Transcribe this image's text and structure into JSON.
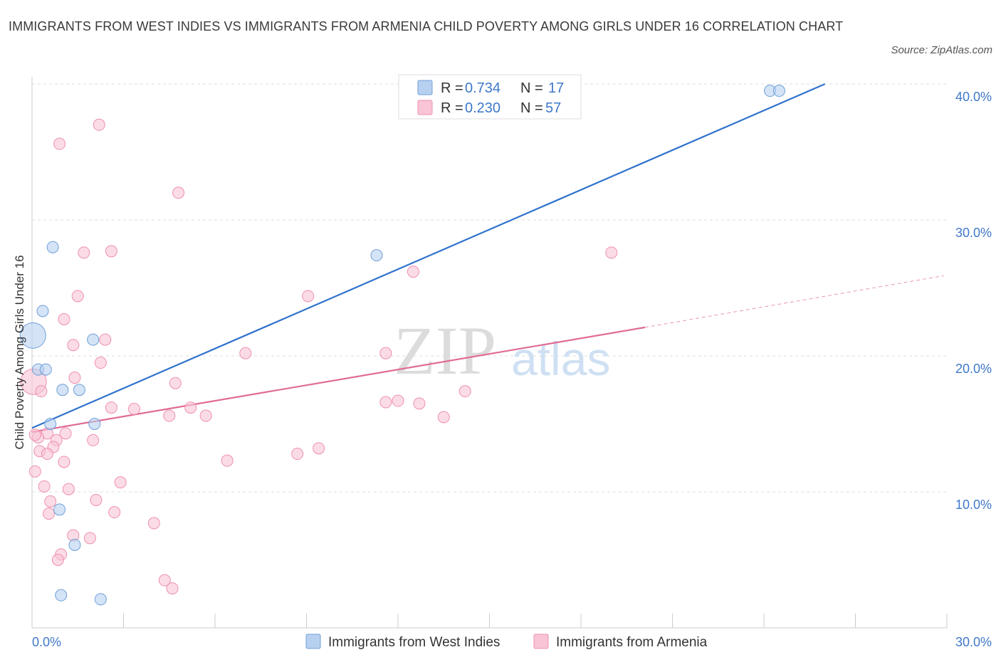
{
  "title": "IMMIGRANTS FROM WEST INDIES VS IMMIGRANTS FROM ARMENIA CHILD POVERTY AMONG GIRLS UNDER 16 CORRELATION CHART",
  "source": "Source: ZipAtlas.com",
  "watermark": {
    "zip": "ZIP",
    "atlas": "atlas"
  },
  "colors": {
    "blue_fill": "#b8d0f0",
    "blue_stroke": "#6f9fd8",
    "blue_line": "#2f72cc",
    "pink_fill": "#f8c4d6",
    "pink_stroke": "#ee8fb0",
    "pink_line": "#e06b95",
    "grid": "#dddddd",
    "axis_text": "#3f78c8"
  },
  "legend": {
    "r_label": "R =",
    "n_label": "N =",
    "series": [
      {
        "r": "0.734",
        "n": "17"
      },
      {
        "r": "0.230",
        "n": "57"
      }
    ]
  },
  "bottom_legend": [
    "Immigrants from West Indies",
    "Immigrants from Armenia"
  ],
  "chart_data": {
    "type": "scatter",
    "title": "IMMIGRANTS FROM WEST INDIES VS IMMIGRANTS FROM ARMENIA CHILD POVERTY AMONG GIRLS UNDER 16 CORRELATION CHART",
    "xlabel": "",
    "ylabel": "Child Poverty Among Girls Under 16",
    "xlim": [
      0,
      30
    ],
    "ylim": [
      0,
      40
    ],
    "x_tick_labels": [
      "0.0%",
      "30.0%"
    ],
    "y_ticks": [
      10,
      20,
      30,
      40
    ],
    "y_tick_labels": [
      "10.0%",
      "20.0%",
      "30.0%",
      "40.0%"
    ],
    "grid": true,
    "series": [
      {
        "name": "Immigrants from West Indies",
        "color": "blue",
        "r": 0.734,
        "n": 17,
        "points": [
          {
            "x": 0.03,
            "y": 21.5,
            "big": true
          },
          {
            "x": 0.2,
            "y": 19.0
          },
          {
            "x": 0.45,
            "y": 19.0
          },
          {
            "x": 0.35,
            "y": 23.3
          },
          {
            "x": 0.68,
            "y": 28.0
          },
          {
            "x": 1.0,
            "y": 17.5
          },
          {
            "x": 1.55,
            "y": 17.5
          },
          {
            "x": 0.6,
            "y": 15.0
          },
          {
            "x": 2.0,
            "y": 21.2
          },
          {
            "x": 2.05,
            "y": 15.0
          },
          {
            "x": 0.9,
            "y": 8.7
          },
          {
            "x": 1.4,
            "y": 6.1
          },
          {
            "x": 0.95,
            "y": 2.4
          },
          {
            "x": 2.25,
            "y": 2.1
          },
          {
            "x": 11.3,
            "y": 27.4
          },
          {
            "x": 24.2,
            "y": 39.5
          },
          {
            "x": 24.5,
            "y": 39.5
          }
        ],
        "trend": {
          "x0": 0,
          "y0": 14.7,
          "x1": 26.0,
          "y1": 40.0
        }
      },
      {
        "name": "Immigrants from Armenia",
        "color": "pink",
        "r": 0.23,
        "n": 57,
        "points": [
          {
            "x": 2.2,
            "y": 37.0
          },
          {
            "x": 0.9,
            "y": 35.6
          },
          {
            "x": 4.8,
            "y": 32.0
          },
          {
            "x": 1.7,
            "y": 27.6
          },
          {
            "x": 2.6,
            "y": 27.7
          },
          {
            "x": 1.5,
            "y": 24.4
          },
          {
            "x": 1.05,
            "y": 22.7
          },
          {
            "x": 2.4,
            "y": 21.2
          },
          {
            "x": 1.35,
            "y": 20.8
          },
          {
            "x": 2.25,
            "y": 19.5
          },
          {
            "x": 1.4,
            "y": 18.4
          },
          {
            "x": 0.05,
            "y": 18.1,
            "big": true
          },
          {
            "x": 0.3,
            "y": 17.4
          },
          {
            "x": 4.7,
            "y": 18.0
          },
          {
            "x": 2.6,
            "y": 16.2
          },
          {
            "x": 3.35,
            "y": 16.1
          },
          {
            "x": 4.5,
            "y": 15.6
          },
          {
            "x": 5.2,
            "y": 16.2
          },
          {
            "x": 5.7,
            "y": 15.6
          },
          {
            "x": 0.5,
            "y": 14.3
          },
          {
            "x": 0.2,
            "y": 14.0
          },
          {
            "x": 1.1,
            "y": 14.3
          },
          {
            "x": 0.8,
            "y": 13.8
          },
          {
            "x": 0.7,
            "y": 13.3
          },
          {
            "x": 0.25,
            "y": 13.0
          },
          {
            "x": 0.5,
            "y": 12.8
          },
          {
            "x": 1.05,
            "y": 12.2
          },
          {
            "x": 2.0,
            "y": 13.8
          },
          {
            "x": 0.1,
            "y": 11.5
          },
          {
            "x": 0.4,
            "y": 10.4
          },
          {
            "x": 1.2,
            "y": 10.2
          },
          {
            "x": 2.9,
            "y": 10.7
          },
          {
            "x": 0.6,
            "y": 9.3
          },
          {
            "x": 2.1,
            "y": 9.4
          },
          {
            "x": 0.55,
            "y": 8.4
          },
          {
            "x": 2.7,
            "y": 8.5
          },
          {
            "x": 4.0,
            "y": 7.7
          },
          {
            "x": 1.35,
            "y": 6.8
          },
          {
            "x": 1.9,
            "y": 6.6
          },
          {
            "x": 0.95,
            "y": 5.4
          },
          {
            "x": 0.85,
            "y": 5.0
          },
          {
            "x": 4.35,
            "y": 3.5
          },
          {
            "x": 4.6,
            "y": 2.9
          },
          {
            "x": 6.4,
            "y": 12.3
          },
          {
            "x": 7.0,
            "y": 20.2
          },
          {
            "x": 9.05,
            "y": 24.4
          },
          {
            "x": 8.7,
            "y": 12.8
          },
          {
            "x": 9.4,
            "y": 13.2
          },
          {
            "x": 11.6,
            "y": 20.2
          },
          {
            "x": 11.6,
            "y": 16.6
          },
          {
            "x": 12.0,
            "y": 16.7
          },
          {
            "x": 12.5,
            "y": 26.2
          },
          {
            "x": 12.7,
            "y": 16.5
          },
          {
            "x": 13.5,
            "y": 15.5
          },
          {
            "x": 14.2,
            "y": 17.4
          },
          {
            "x": 19.0,
            "y": 27.6
          },
          {
            "x": 0.1,
            "y": 14.2
          }
        ],
        "trend": {
          "x0": 0,
          "y0": 14.4,
          "x1": 20.1,
          "y1": 22.1
        },
        "trend_dashed": {
          "x0": 20.1,
          "y0": 22.1,
          "x1": 29.9,
          "y1": 25.9
        }
      }
    ]
  }
}
